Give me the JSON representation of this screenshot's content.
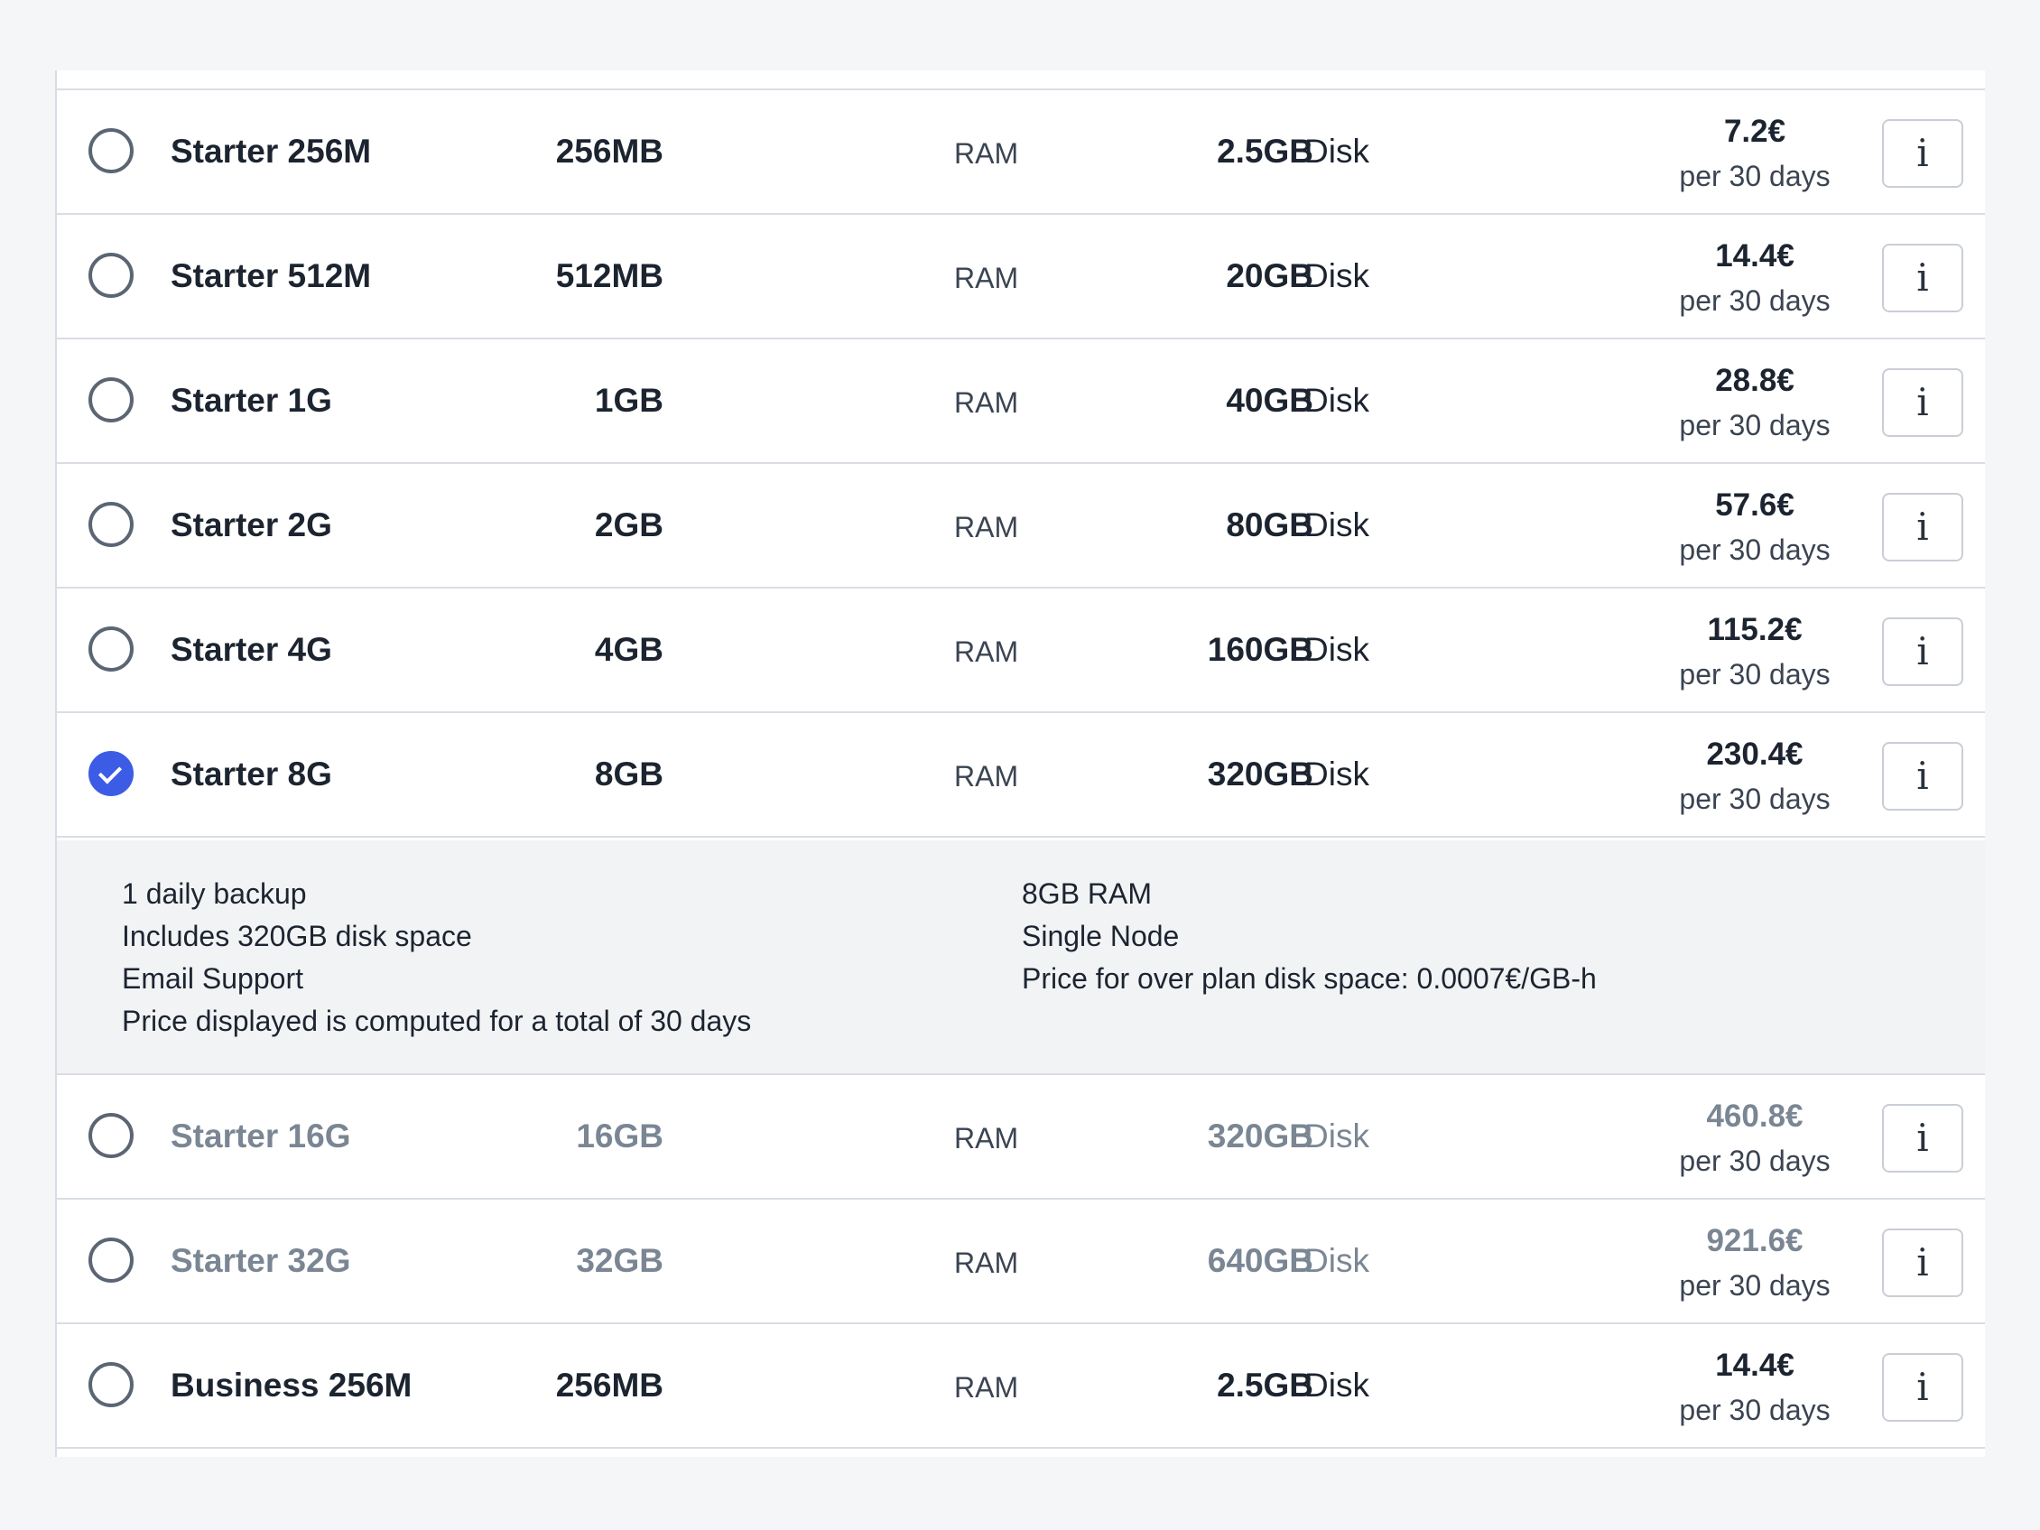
{
  "plans": [
    {
      "name": "Starter 256M",
      "ram": "256MB",
      "ram_unit": "RAM",
      "disk": "2.5GB",
      "disk_unit": "Disk",
      "price": "7.2€",
      "period": "per 30 days",
      "selected": false,
      "muted": false
    },
    {
      "name": "Starter 512M",
      "ram": "512MB",
      "ram_unit": "RAM",
      "disk": "20GB",
      "disk_unit": "Disk",
      "price": "14.4€",
      "period": "per 30 days",
      "selected": false,
      "muted": false
    },
    {
      "name": "Starter 1G",
      "ram": "1GB",
      "ram_unit": "RAM",
      "disk": "40GB",
      "disk_unit": "Disk",
      "price": "28.8€",
      "period": "per 30 days",
      "selected": false,
      "muted": false
    },
    {
      "name": "Starter 2G",
      "ram": "2GB",
      "ram_unit": "RAM",
      "disk": "80GB",
      "disk_unit": "Disk",
      "price": "57.6€",
      "period": "per 30 days",
      "selected": false,
      "muted": false
    },
    {
      "name": "Starter 4G",
      "ram": "4GB",
      "ram_unit": "RAM",
      "disk": "160GB",
      "disk_unit": "Disk",
      "price": "115.2€",
      "period": "per 30 days",
      "selected": false,
      "muted": false
    },
    {
      "name": "Starter 8G",
      "ram": "8GB",
      "ram_unit": "RAM",
      "disk": "320GB",
      "disk_unit": "Disk",
      "price": "230.4€",
      "period": "per 30 days",
      "selected": true,
      "muted": false
    },
    {
      "name": "Starter 16G",
      "ram": "16GB",
      "ram_unit": "RAM",
      "disk": "320GB",
      "disk_unit": "Disk",
      "price": "460.8€",
      "period": "per 30 days",
      "selected": false,
      "muted": true
    },
    {
      "name": "Starter 32G",
      "ram": "32GB",
      "ram_unit": "RAM",
      "disk": "640GB",
      "disk_unit": "Disk",
      "price": "921.6€",
      "period": "per 30 days",
      "selected": false,
      "muted": true
    },
    {
      "name": "Business 256M",
      "ram": "256MB",
      "ram_unit": "RAM",
      "disk": "2.5GB",
      "disk_unit": "Disk",
      "price": "14.4€",
      "period": "per 30 days",
      "selected": false,
      "muted": false
    }
  ],
  "info_glyph": "i",
  "details": {
    "left": [
      "1 daily backup",
      "Includes 320GB disk space",
      "Email Support",
      "Price displayed is computed for a total of 30 days"
    ],
    "right": [
      "8GB RAM",
      "Single Node",
      "Price for over plan disk space: 0.0007€/GB-h"
    ]
  },
  "icons": {
    "radio": "radio-circle-icon",
    "check": "check-icon",
    "info": "info-icon"
  },
  "colors": {
    "accent": "#3d5ce6",
    "muted_text": "#7b8694",
    "details_bg": "#f2f3f5"
  }
}
